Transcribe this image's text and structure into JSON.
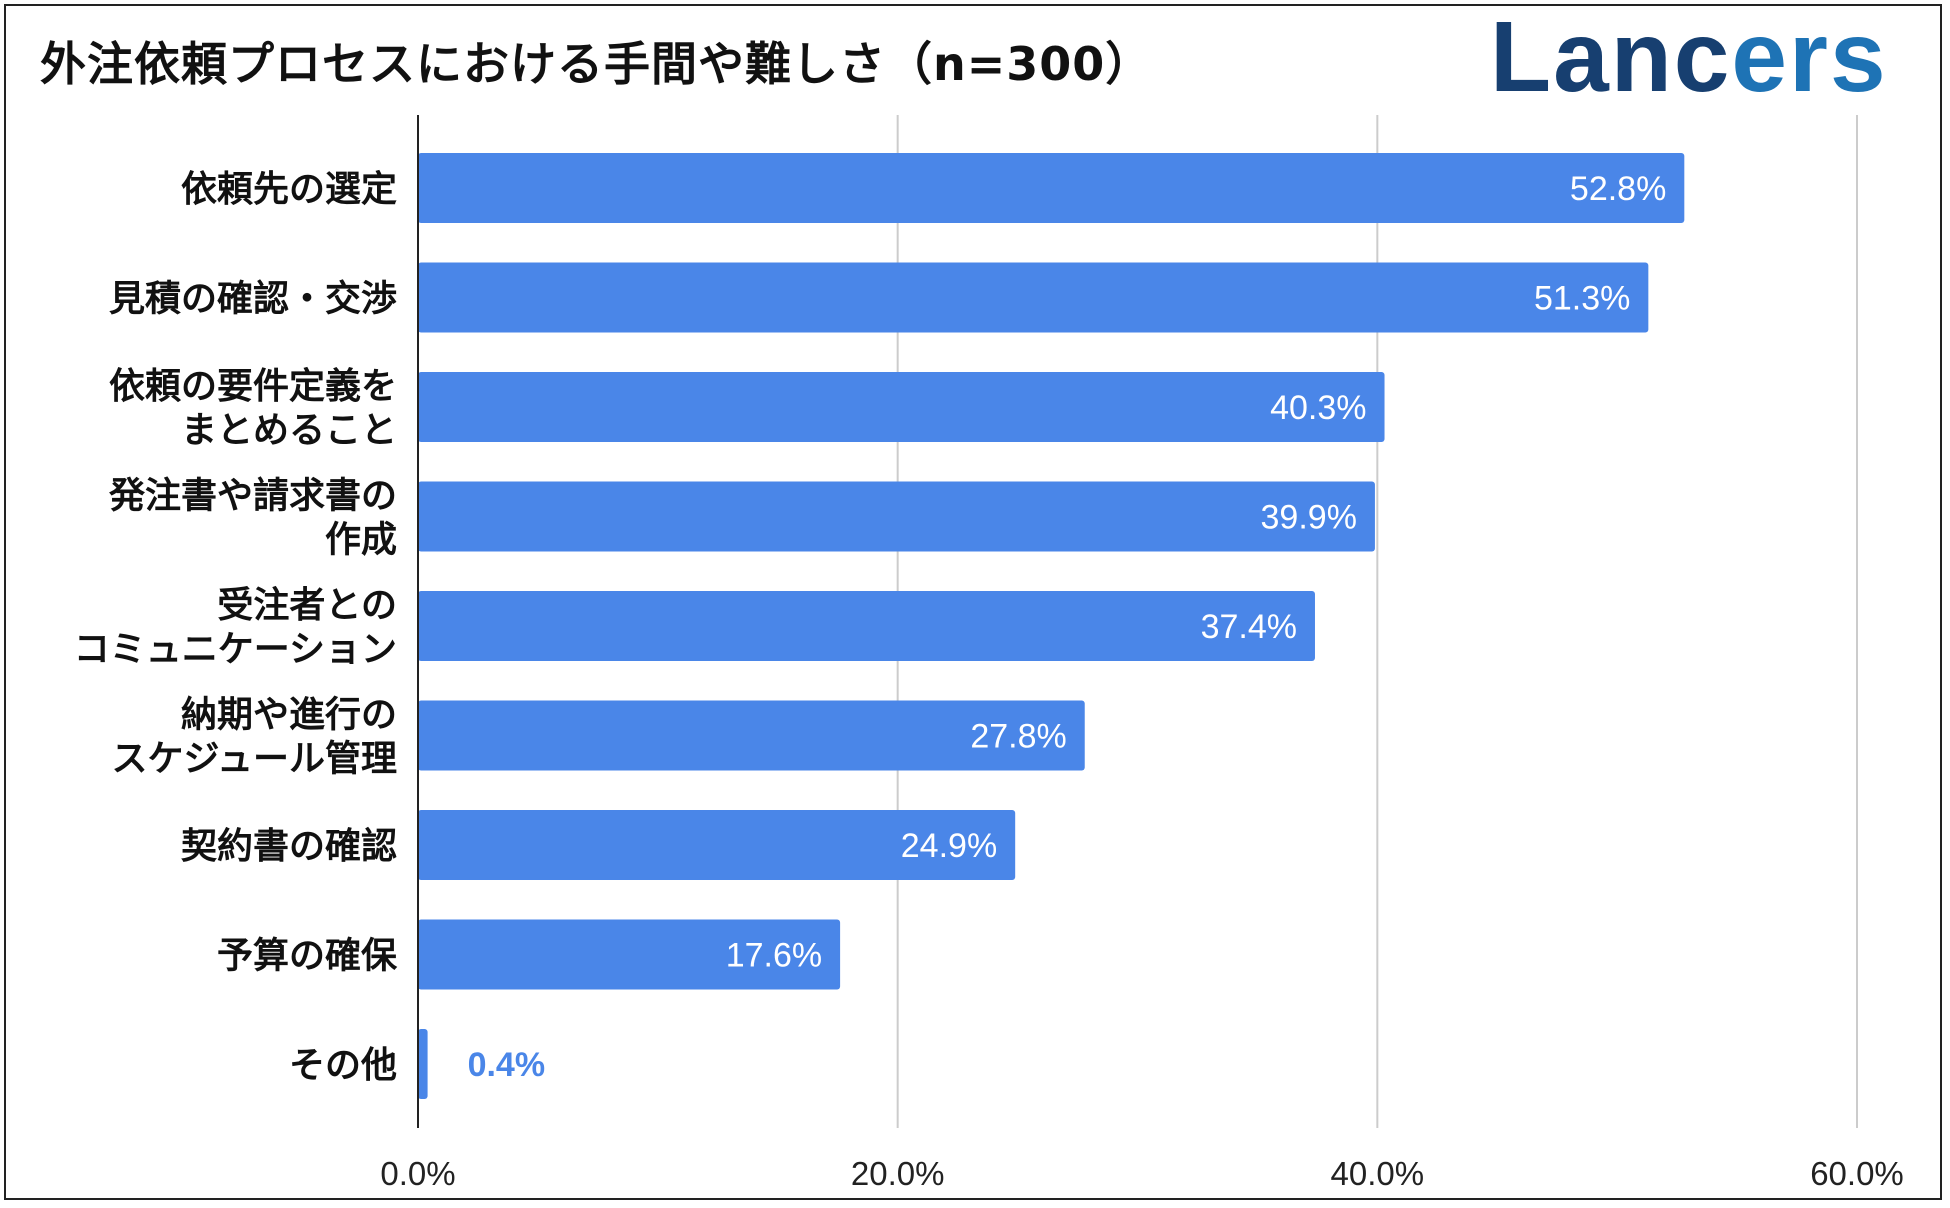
{
  "chart_data": {
    "type": "bar",
    "orientation": "horizontal",
    "title": "外注依頼プロセスにおける手間や難しさ（n=300）",
    "brand": "Lancers",
    "categories": [
      "依頼先の選定",
      "見積の確認・交渉",
      "依頼の要件定義をまとめること",
      "発注書や請求書の作成",
      "受注者とのコミュニケーション",
      "納期や進行のスケジュール管理",
      "契約書の確認",
      "予算の確保",
      "その他"
    ],
    "category_lines": [
      [
        "依頼先の選定"
      ],
      [
        "見積の確認・交渉"
      ],
      [
        "依頼の要件定義を",
        "まとめること"
      ],
      [
        "発注書や請求書の",
        "作成"
      ],
      [
        "受注者との",
        "コミュニケーション"
      ],
      [
        "納期や進行の",
        "スケジュール管理"
      ],
      [
        "契約書の確認"
      ],
      [
        "予算の確保"
      ],
      [
        "その他"
      ]
    ],
    "values": [
      52.8,
      51.3,
      40.3,
      39.9,
      37.4,
      27.8,
      24.9,
      17.6,
      0.4
    ],
    "value_labels": [
      "52.8%",
      "51.3%",
      "40.3%",
      "39.9%",
      "37.4%",
      "27.8%",
      "24.9%",
      "17.6%",
      "0.4%"
    ],
    "xlim": [
      0,
      60
    ],
    "xticks": [
      0,
      20,
      40,
      60
    ],
    "xtick_labels": [
      "0.0%",
      "20.0%",
      "40.0%",
      "60.0%"
    ],
    "xlabel": "",
    "ylabel": "",
    "grid": true,
    "colors": {
      "bar": "#4a86e8",
      "grid": "#cccccc",
      "axis": "#222222",
      "brand_dark": "#173f70",
      "brand_light": "#1e73b5"
    }
  }
}
